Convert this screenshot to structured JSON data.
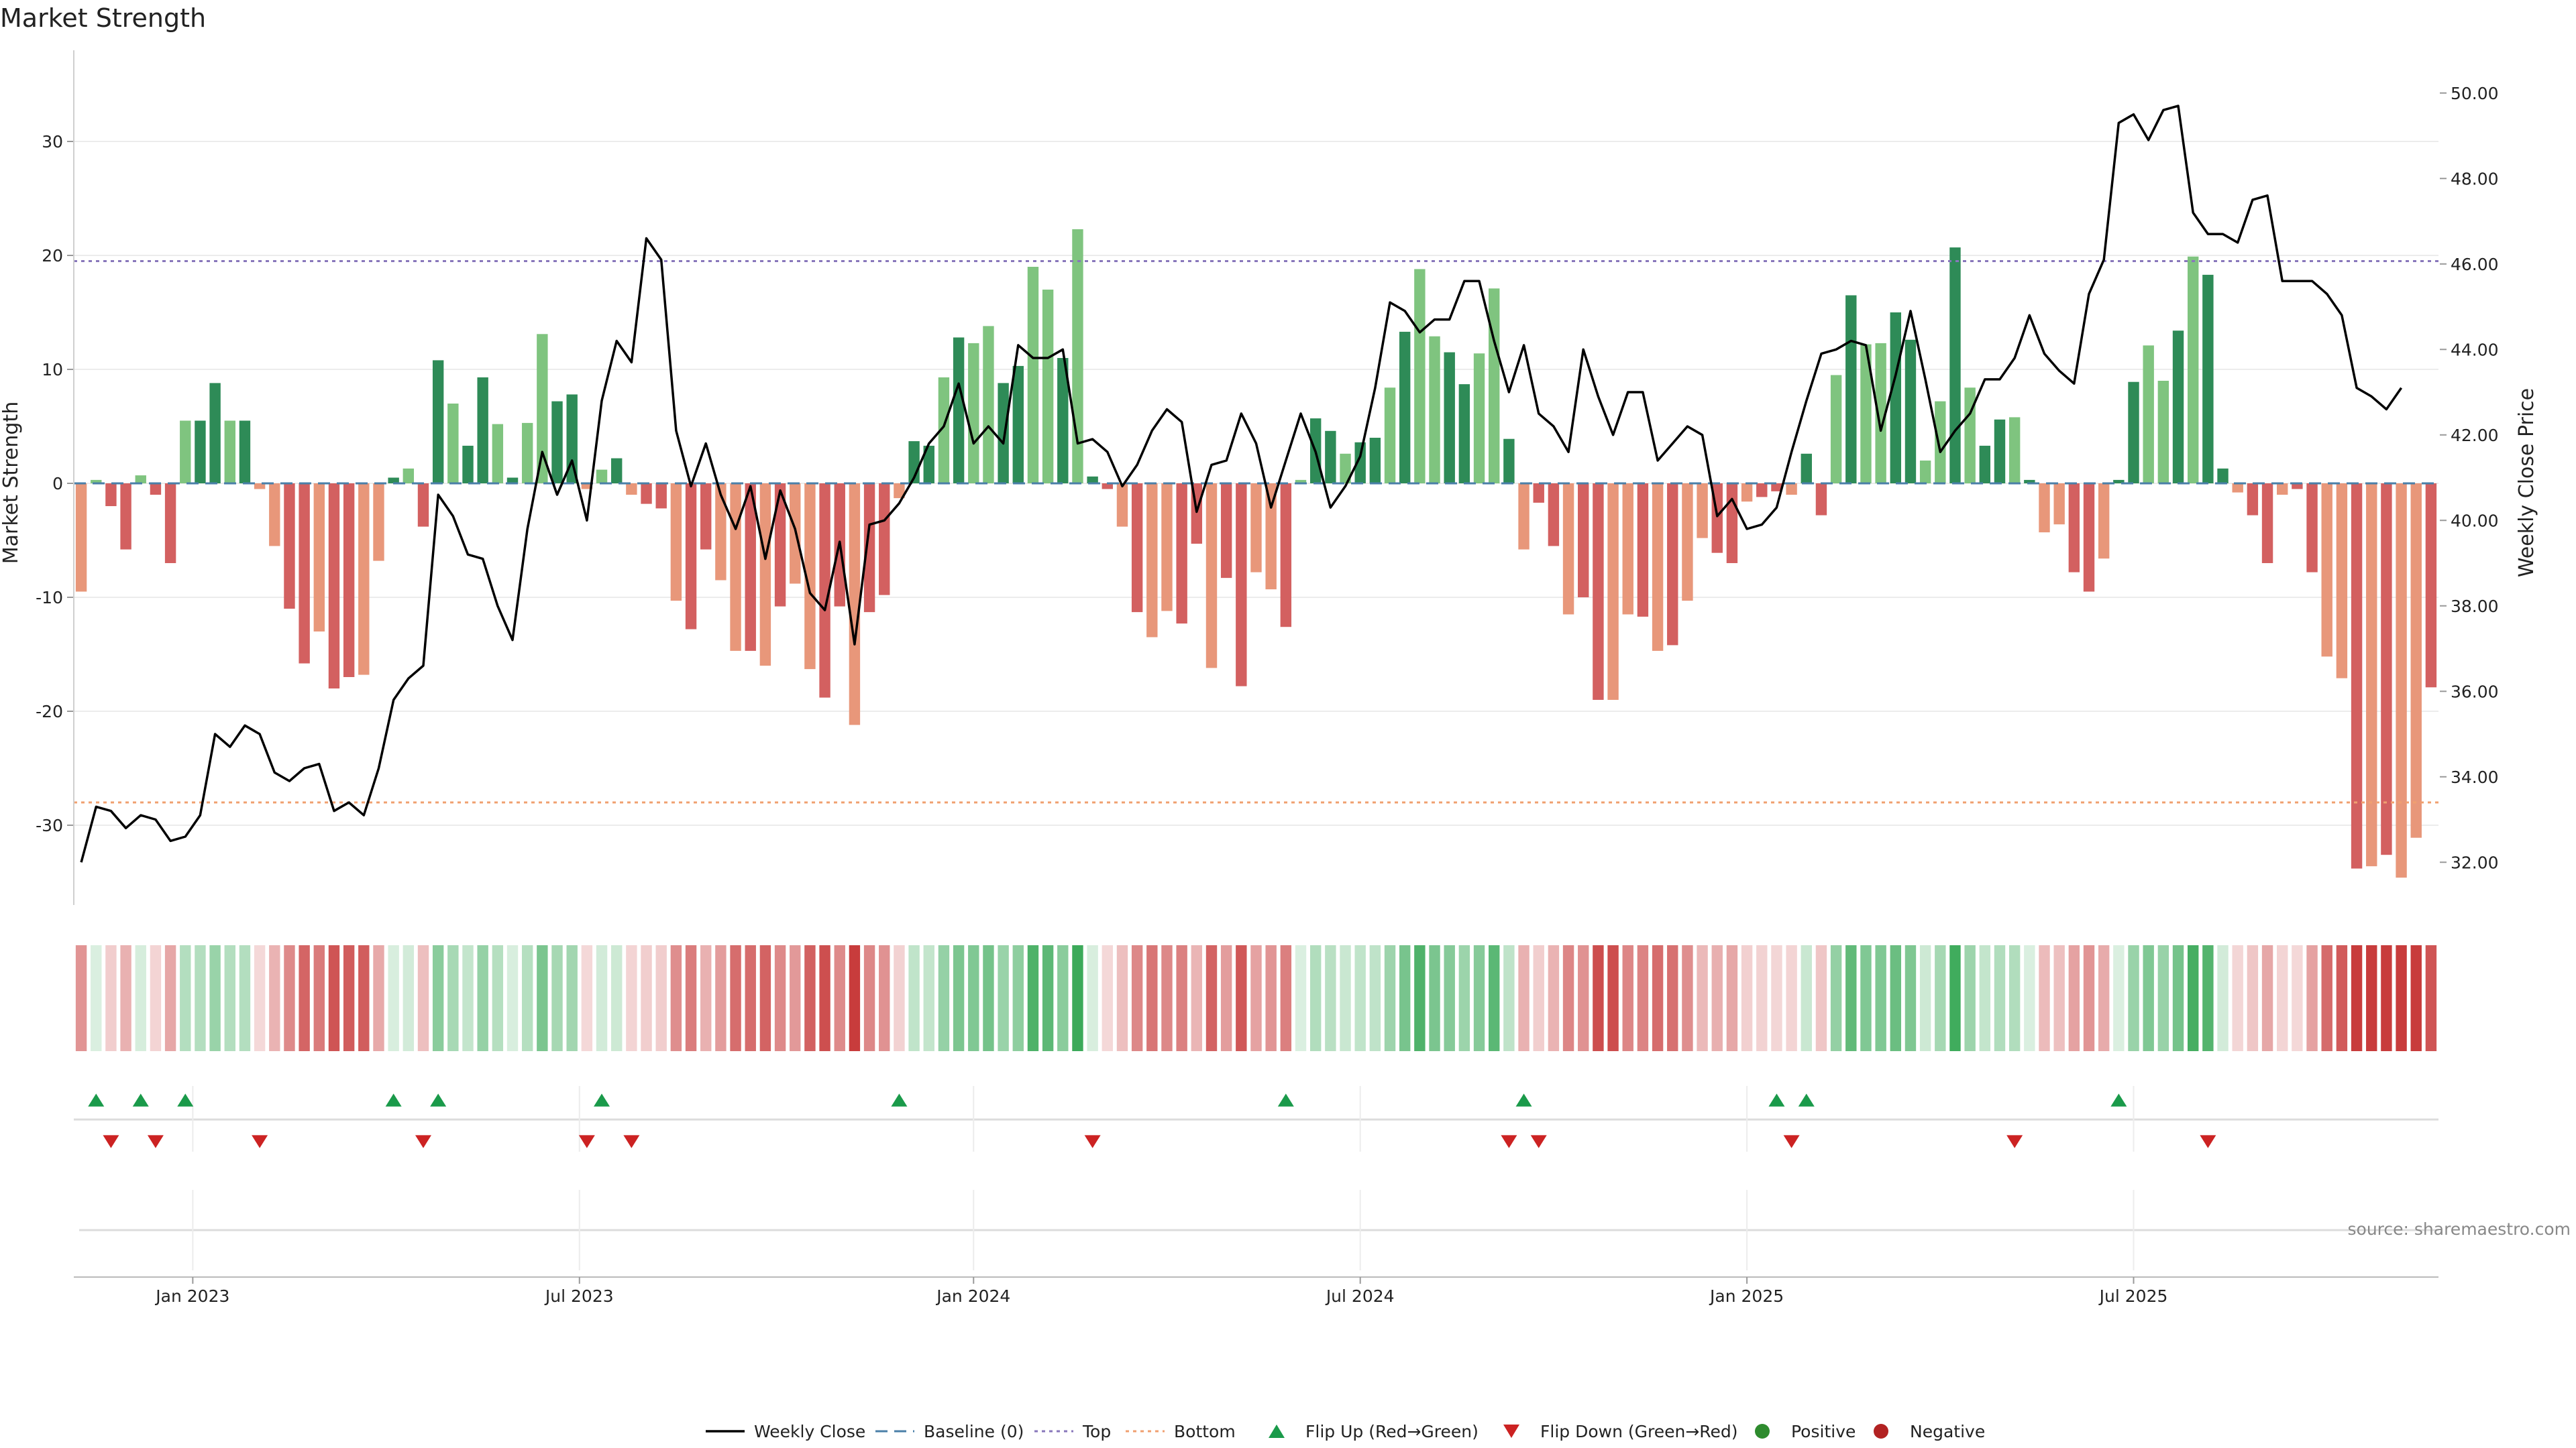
{
  "chart_data": {
    "type": "bar",
    "title": "Market Strength",
    "ylabel": "Market Strength",
    "y2label": "Weekly Close Price",
    "ylim": [
      -37,
      38
    ],
    "y2lim": [
      31.0,
      51.0
    ],
    "yticks": [
      -30,
      -20,
      -10,
      0,
      10,
      20,
      30
    ],
    "y2ticks": [
      "32.00",
      "34.00",
      "36.00",
      "38.00",
      "40.00",
      "42.00",
      "44.00",
      "46.00",
      "48.00",
      "50.00"
    ],
    "x_ticks": [
      "Jan 2023",
      "Jul 2023",
      "Jan 2024",
      "Jul 2024",
      "Jan 2025",
      "Jul 2025"
    ],
    "x_tick_weeks": [
      8,
      34,
      60.5,
      86.5,
      112.5,
      138.5
    ],
    "top_level": 19.5,
    "bottom_level": -28,
    "source": "source: sharemaestro.com",
    "strength": [
      -9.5,
      0.3,
      -2,
      -5.8,
      0.7,
      -1,
      -7,
      5.5,
      5.5,
      8.8,
      5.5,
      5.5,
      -0.5,
      -5.5,
      -11,
      -15.8,
      -13,
      -18,
      -17,
      -16.8,
      -6.8,
      0.5,
      1.3,
      -3.8,
      10.8,
      7,
      3.3,
      9.3,
      5.2,
      0.5,
      5.3,
      13.1,
      7.2,
      7.8,
      -0.5,
      1.2,
      2.2,
      -1,
      -1.8,
      -2.2,
      -10.3,
      -12.8,
      -5.8,
      -8.5,
      -14.7,
      -14.7,
      -16,
      -10.8,
      -8.8,
      -16.3,
      -18.8,
      -10.8,
      -21.2,
      -11.3,
      -9.8,
      -1.3,
      3.7,
      3.3,
      9.3,
      12.8,
      12.3,
      13.8,
      8.8,
      10.3,
      19,
      17,
      11,
      22.3,
      0.6,
      -0.5,
      -3.8,
      -11.3,
      -13.5,
      -11.2,
      -12.3,
      -5.3,
      -16.2,
      -8.3,
      -17.8,
      -7.8,
      -9.3,
      -12.6,
      0.3,
      5.7,
      4.6,
      2.6,
      3.6,
      4,
      8.4,
      13.3,
      18.8,
      12.9,
      11.5,
      8.7,
      11.4,
      17.1,
      3.9,
      -5.8,
      -1.7,
      -5.5,
      -11.5,
      -10,
      -19,
      -19,
      -11.5,
      -11.7,
      -14.7,
      -14.2,
      -10.3,
      -4.8,
      -6.1,
      -7,
      -1.6,
      -1.2,
      -0.7,
      -1,
      2.6,
      -2.8,
      9.5,
      16.5,
      12.2,
      12.3,
      15,
      12.6,
      2,
      7.2,
      20.7,
      8.4,
      3.3,
      5.6,
      5.8,
      0.3,
      -4.3,
      -3.6,
      -7.8,
      -9.5,
      -6.6,
      0.3,
      8.9,
      12.1,
      9,
      13.4,
      19.9,
      18.3,
      1.3,
      -0.8,
      -2.8,
      -7,
      -1,
      -0.5,
      -7.8,
      -15.2,
      -17.1,
      -33.8,
      -33.6,
      -32.6,
      -34.6,
      -31.1,
      -17.9
    ],
    "weekly_close": [
      32.0,
      33.3,
      33.2,
      32.8,
      33.1,
      33.0,
      32.5,
      32.6,
      33.1,
      35.0,
      34.7,
      35.2,
      35.0,
      34.1,
      33.9,
      34.2,
      34.3,
      33.2,
      33.4,
      33.1,
      34.2,
      35.8,
      36.3,
      36.6,
      40.6,
      40.1,
      39.2,
      39.1,
      38.0,
      37.2,
      39.8,
      41.6,
      40.6,
      41.4,
      40.0,
      42.8,
      44.2,
      43.7,
      46.6,
      46.1,
      42.1,
      40.8,
      41.8,
      40.6,
      39.8,
      40.8,
      39.1,
      40.7,
      39.8,
      38.3,
      37.9,
      39.5,
      37.1,
      39.9,
      40.0,
      40.4,
      41.0,
      41.8,
      42.2,
      43.2,
      41.8,
      42.2,
      41.8,
      44.1,
      43.8,
      43.8,
      44.0,
      41.8,
      41.9,
      41.6,
      40.8,
      41.3,
      42.1,
      42.6,
      42.3,
      40.2,
      41.3,
      41.4,
      42.5,
      41.8,
      40.3,
      41.4,
      42.5,
      41.6,
      40.3,
      40.8,
      41.5,
      43.1,
      45.1,
      44.9,
      44.4,
      44.7,
      44.7,
      45.6,
      45.6,
      44.2,
      43.0,
      44.1,
      42.5,
      42.2,
      41.6,
      44.0,
      42.9,
      42.0,
      43.0,
      43.0,
      41.4,
      41.8,
      42.2,
      42.0,
      40.1,
      40.5,
      39.8,
      39.9,
      40.3,
      41.6,
      42.8,
      43.9,
      44.0,
      44.2,
      44.1,
      42.1,
      43.4,
      44.9,
      43.3,
      41.6,
      42.1,
      42.5,
      43.3,
      43.3,
      43.8,
      44.8,
      43.9,
      43.5,
      43.2,
      45.3,
      46.1,
      49.3,
      49.5,
      48.9,
      49.6,
      49.7,
      47.2,
      46.7,
      46.7,
      46.5,
      47.5,
      47.6,
      45.6,
      45.6,
      45.6,
      45.3,
      44.8,
      43.1,
      42.9,
      42.6,
      43.1
    ],
    "flip_up_weeks": [
      1,
      4,
      7,
      21,
      24,
      35,
      55,
      81,
      97,
      114,
      116,
      137
    ],
    "flip_down_weeks": [
      2,
      5,
      12,
      23,
      34,
      37,
      68,
      96,
      98,
      115,
      130,
      143
    ],
    "series": [
      {
        "name": "Weekly Close"
      },
      {
        "name": "Baseline (0)"
      },
      {
        "name": "Top"
      },
      {
        "name": "Bottom"
      },
      {
        "name": "Flip Up (Red→Green)"
      },
      {
        "name": "Flip Down (Green→Red)"
      },
      {
        "name": "Positive"
      },
      {
        "name": "Negative"
      }
    ],
    "colors": {
      "pos_dark": "#2e8b57",
      "pos_light": "#7fc47f",
      "neg_dark": "#d36060",
      "neg_light": "#e8977a",
      "line": "#000000",
      "baseline": "#4a7fa8",
      "top": "#8877bb",
      "bottom": "#f0a070",
      "flip_up": "#1a9a4a",
      "flip_down": "#cc2222",
      "positive_dot": "#2e8b2e",
      "negative_dot": "#b22222"
    }
  }
}
